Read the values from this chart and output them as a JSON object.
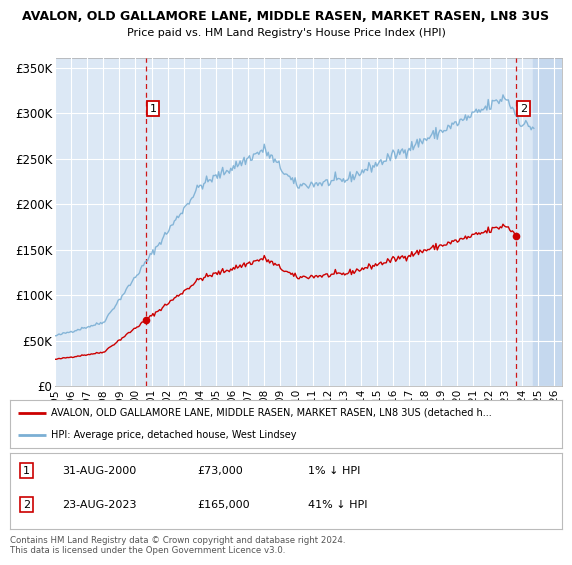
{
  "title": "AVALON, OLD GALLAMORE LANE, MIDDLE RASEN, MARKET RASEN, LN8 3US",
  "subtitle": "Price paid vs. HM Land Registry's House Price Index (HPI)",
  "ylabel_ticks": [
    "£0",
    "£50K",
    "£100K",
    "£150K",
    "£200K",
    "£250K",
    "£300K",
    "£350K"
  ],
  "ytick_values": [
    0,
    50000,
    100000,
    150000,
    200000,
    250000,
    300000,
    350000
  ],
  "ylim": [
    0,
    360000
  ],
  "xlim_start": 1995.0,
  "xlim_end": 2026.5,
  "bg_color": "#ffffff",
  "plot_bg_color": "#dce8f5",
  "grid_color": "#ffffff",
  "hpi_color": "#7bafd4",
  "price_color": "#cc0000",
  "sale1_price": 73000,
  "sale1_year": 2000.67,
  "sale2_price": 165000,
  "sale2_year": 2023.67,
  "legend_line1": "AVALON, OLD GALLAMORE LANE, MIDDLE RASEN, MARKET RASEN, LN8 3US (detached h...",
  "legend_line2": "HPI: Average price, detached house, West Lindsey",
  "footer": "Contains HM Land Registry data © Crown copyright and database right 2024.\nThis data is licensed under the Open Government Licence v3.0.",
  "future_start": 2024.67,
  "hpi_seed": 42,
  "sale1_date": "31-AUG-2000",
  "sale2_date": "23-AUG-2023"
}
